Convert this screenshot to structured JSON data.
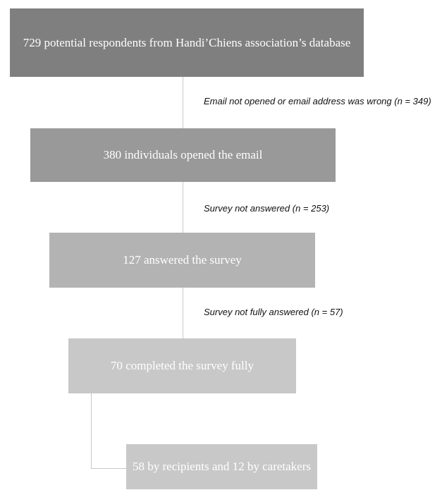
{
  "flow": {
    "step1": {
      "text": "729 potential respondents from Handi’Chiens association’s database"
    },
    "exclusion1": {
      "text": "Email not opened or email address was wrong (n = 349)"
    },
    "step2": {
      "text": "380 individuals opened the email"
    },
    "exclusion2": {
      "text": "Survey not answered (n = 253)"
    },
    "step3": {
      "text": "127 answered the survey"
    },
    "exclusion3": {
      "text": "Survey not fully answered (n = 57)"
    },
    "step4": {
      "text": "70 completed the survey fully"
    },
    "step5": {
      "text": "58 by recipients and 12 by caretakers"
    }
  },
  "colors": {
    "step1": "#7f7f7f",
    "step2": "#999999",
    "step3": "#b3b3b3",
    "step4": "#c8c8c8",
    "step5": "#c8c8c8",
    "connector": "#c8c8c8"
  }
}
